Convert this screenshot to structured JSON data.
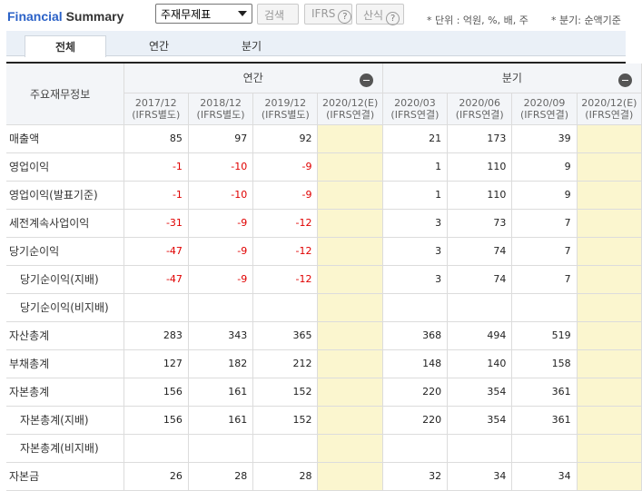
{
  "header": {
    "brand_part1": "Financial",
    "brand_part2": " Summary",
    "statement_select": "주재무제표",
    "search_label": "검색",
    "ifrs_label": "IFRS",
    "calc_label": "산식",
    "help_glyph": "?",
    "unit_note": "* 단위 : 억원, %, 배, 주",
    "quarter_note": "* 분기: 순액기준"
  },
  "tabs": [
    "전체",
    "연간",
    "분기"
  ],
  "table": {
    "corner_label": "주요재무정보",
    "groups": [
      "연간",
      "분기"
    ],
    "periods": [
      {
        "date": "2017/12",
        "basis": "(IFRS별도)"
      },
      {
        "date": "2018/12",
        "basis": "(IFRS별도)"
      },
      {
        "date": "2019/12",
        "basis": "(IFRS별도)"
      },
      {
        "date": "2020/12(E)",
        "basis": "(IFRS연결)"
      },
      {
        "date": "2020/03",
        "basis": "(IFRS연결)"
      },
      {
        "date": "2020/06",
        "basis": "(IFRS연결)"
      },
      {
        "date": "2020/09",
        "basis": "(IFRS연결)"
      },
      {
        "date": "2020/12(E)",
        "basis": "(IFRS연결)"
      }
    ],
    "rows": [
      {
        "label": "매출액",
        "sub": false,
        "values": [
          "85",
          "97",
          "92",
          "",
          "21",
          "173",
          "39",
          ""
        ]
      },
      {
        "label": "영업이익",
        "sub": false,
        "values": [
          "-1",
          "-10",
          "-9",
          "",
          "1",
          "110",
          "9",
          ""
        ]
      },
      {
        "label": "영업이익(발표기준)",
        "sub": false,
        "values": [
          "-1",
          "-10",
          "-9",
          "",
          "1",
          "110",
          "9",
          ""
        ]
      },
      {
        "label": "세전계속사업이익",
        "sub": false,
        "values": [
          "-31",
          "-9",
          "-12",
          "",
          "3",
          "73",
          "7",
          ""
        ]
      },
      {
        "label": "당기순이익",
        "sub": false,
        "values": [
          "-47",
          "-9",
          "-12",
          "",
          "3",
          "74",
          "7",
          ""
        ]
      },
      {
        "label": "당기순이익(지배)",
        "sub": true,
        "values": [
          "-47",
          "-9",
          "-12",
          "",
          "3",
          "74",
          "7",
          ""
        ]
      },
      {
        "label": "당기순이익(비지배)",
        "sub": true,
        "values": [
          "",
          "",
          "",
          "",
          "",
          "",
          "",
          ""
        ]
      },
      {
        "label": "자산총계",
        "sub": false,
        "values": [
          "283",
          "343",
          "365",
          "",
          "368",
          "494",
          "519",
          ""
        ]
      },
      {
        "label": "부채총계",
        "sub": false,
        "values": [
          "127",
          "182",
          "212",
          "",
          "148",
          "140",
          "158",
          ""
        ]
      },
      {
        "label": "자본총계",
        "sub": false,
        "values": [
          "156",
          "161",
          "152",
          "",
          "220",
          "354",
          "361",
          ""
        ]
      },
      {
        "label": "자본총계(지배)",
        "sub": true,
        "values": [
          "156",
          "161",
          "152",
          "",
          "220",
          "354",
          "361",
          ""
        ]
      },
      {
        "label": "자본총계(비지배)",
        "sub": true,
        "values": [
          "",
          "",
          "",
          "",
          "",
          "",
          "",
          ""
        ]
      },
      {
        "label": "자본금",
        "sub": false,
        "values": [
          "26",
          "28",
          "28",
          "",
          "32",
          "34",
          "34",
          ""
        ]
      }
    ]
  },
  "colors": {
    "brand_blue": "#2a61c7",
    "negative": "#e00000",
    "estimate_bg": "#fbf6cf"
  }
}
